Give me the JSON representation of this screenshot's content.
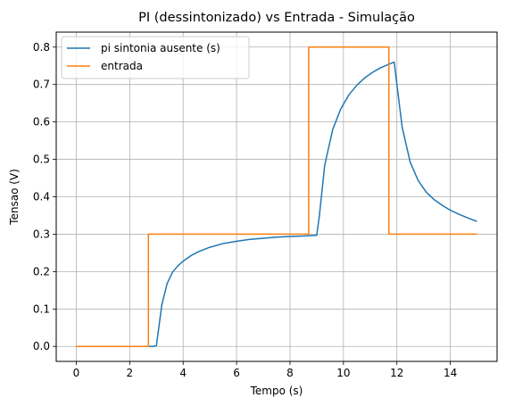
{
  "chart_data": {
    "type": "line",
    "title": "PI (dessintonizado) vs Entrada - Simulação",
    "xlabel": "Tempo (s)",
    "ylabel": "Tensao (V)",
    "xlim": [
      -0.75,
      15.75
    ],
    "ylim": [
      -0.04,
      0.84
    ],
    "xticks": [
      0,
      2,
      4,
      6,
      8,
      10,
      12,
      14
    ],
    "yticks": [
      0.0,
      0.1,
      0.2,
      0.3,
      0.4,
      0.5,
      0.6,
      0.7,
      0.8
    ],
    "ytick_labels": [
      "0.0",
      "0.1",
      "0.2",
      "0.3",
      "0.4",
      "0.5",
      "0.6",
      "0.7",
      "0.8"
    ],
    "grid": true,
    "legend_position": "upper-left",
    "series": [
      {
        "name": "pi sintonia ausente (s)",
        "color": "#1f77b4",
        "x": [
          0,
          2.9,
          3.0,
          3.2,
          3.4,
          3.6,
          3.8,
          4.0,
          4.3,
          4.6,
          5.0,
          5.5,
          6.0,
          6.5,
          7.0,
          7.5,
          8.0,
          8.5,
          9.0,
          9.1,
          9.3,
          9.6,
          9.9,
          10.2,
          10.5,
          10.8,
          11.1,
          11.4,
          11.7,
          11.9,
          12.0,
          12.2,
          12.5,
          12.8,
          13.1,
          13.4,
          13.7,
          14.0,
          14.3,
          14.6,
          15.0
        ],
        "y": [
          0.0,
          0.0,
          0.002,
          0.11,
          0.168,
          0.198,
          0.215,
          0.228,
          0.243,
          0.254,
          0.265,
          0.275,
          0.281,
          0.286,
          0.289,
          0.292,
          0.294,
          0.295,
          0.297,
          0.35,
          0.485,
          0.58,
          0.635,
          0.672,
          0.698,
          0.718,
          0.733,
          0.745,
          0.754,
          0.76,
          0.7,
          0.585,
          0.492,
          0.443,
          0.412,
          0.392,
          0.377,
          0.364,
          0.354,
          0.345,
          0.334
        ]
      },
      {
        "name": "entrada",
        "color": "#ff7f0e",
        "x": [
          0,
          2.7,
          2.7,
          8.7,
          8.7,
          11.7,
          11.7,
          15.0
        ],
        "y": [
          0.0,
          0.0,
          0.3,
          0.3,
          0.8,
          0.8,
          0.3,
          0.3
        ]
      }
    ]
  }
}
